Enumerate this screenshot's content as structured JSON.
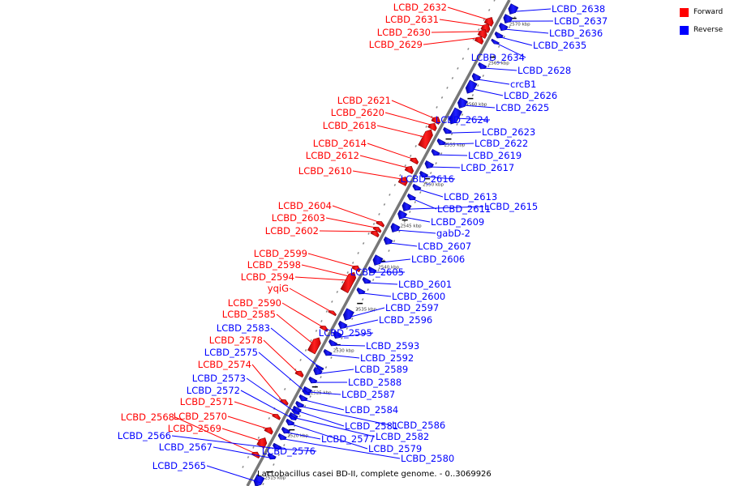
{
  "legend": {
    "forward_label": "Forward",
    "reverse_label": "Reverse",
    "forward_color": "#ff0000",
    "reverse_color": "#0000ff"
  },
  "caption": "Lactobacillus casei BD-II, complete genome. - 0..3069926",
  "scale_ticks": [
    "2515 kbp",
    "2520 kbp",
    "2525 kbp",
    "2530 kbp",
    "2535 kbp",
    "2540 kbp",
    "2545 kbp",
    "2550 kbp",
    "2555 kbp",
    "2560 kbp",
    "2565 kbp",
    "2570 kbp"
  ],
  "genes_forward": [
    {
      "name": "LCBD_2632",
      "lp": 1.0
    },
    {
      "name": "LCBD_2631",
      "lp": 1.0
    },
    {
      "name": "LCBD_2630",
      "lp": 1.0
    },
    {
      "name": "LCBD_2629",
      "lp": 0.5
    },
    {
      "name": "LCBD_2621",
      "lp": 1.0
    },
    {
      "name": "LCBD_2620",
      "lp": 1.0
    },
    {
      "name": "LCBD_2618",
      "lp": 0.5
    },
    {
      "name": "LCBD_2614",
      "lp": 1.0
    },
    {
      "name": "LCBD_2612",
      "lp": 1.0
    },
    {
      "name": "LCBD_2610",
      "lp": 0.5
    },
    {
      "name": "LCBD_2604",
      "lp": 1.0
    },
    {
      "name": "LCBD_2603",
      "lp": 1.0
    },
    {
      "name": "LCBD_2602",
      "lp": 0.5
    },
    {
      "name": "LCBD_2599",
      "lp": 1.0
    },
    {
      "name": "LCBD_2598",
      "lp": 0.5
    },
    {
      "name": "LCBD_2594",
      "lp": 0.5
    },
    {
      "name": "yqiG",
      "lp": 1.0
    },
    {
      "name": "LCBD_2590",
      "lp": 1.0
    },
    {
      "name": "LCBD_2585",
      "lp": 1.0
    },
    {
      "name": "LCBD_2578",
      "lp": 0.5
    },
    {
      "name": "LCBD_2574",
      "lp": 1.0
    },
    {
      "name": "LCBD_2571",
      "lp": 1.0
    },
    {
      "name": "LCBD_2570",
      "lp": 1.0
    },
    {
      "name": "LCBD_2569",
      "lp": 1.0
    },
    {
      "name": "LCBD_2568",
      "lp": 0.5
    }
  ],
  "genes_reverse": [
    {
      "name": "LCBD_2638",
      "lp": 0.0
    },
    {
      "name": "LCBD_2637",
      "lp": 0.0
    },
    {
      "name": "LCBD_2636",
      "lp": 0.0
    },
    {
      "name": "LCBD_2635",
      "lp": 0.0
    },
    {
      "name": "LCBD_2634",
      "lp": 0.5
    },
    {
      "name": "LCBD_2628",
      "lp": 0.0
    },
    {
      "name": "crcB1",
      "lp": 0.0
    },
    {
      "name": "LCBD_2626",
      "lp": 0.0
    },
    {
      "name": "LCBD_2625",
      "lp": 0.0
    },
    {
      "name": "LCBD_2624",
      "lp": 0.5
    },
    {
      "name": "LCBD_2623",
      "lp": 0.0
    },
    {
      "name": "LCBD_2622",
      "lp": 0.0
    },
    {
      "name": "LCBD_2619",
      "lp": 0.0
    },
    {
      "name": "LCBD_2617",
      "lp": 0.0
    },
    {
      "name": "LCBD_2616",
      "lp": 0.5
    },
    {
      "name": "LCBD_2613",
      "lp": 0.0
    },
    {
      "name": "LCBD_2611",
      "lp": 0.0
    },
    {
      "name": "LCBD_2615",
      "lp": 0.0
    },
    {
      "name": "LCBD_2609",
      "lp": 0.0
    },
    {
      "name": "gabD-2",
      "lp": 0.0
    },
    {
      "name": "LCBD_2607",
      "lp": 0.0
    },
    {
      "name": "LCBD_2606",
      "lp": 0.0
    },
    {
      "name": "LCBD_2605",
      "lp": 0.5
    },
    {
      "name": "LCBD_2601",
      "lp": 0.0
    },
    {
      "name": "LCBD_2600",
      "lp": 0.0
    },
    {
      "name": "LCBD_2597",
      "lp": 0.0
    },
    {
      "name": "LCBD_2596",
      "lp": 0.0
    },
    {
      "name": "LCBD_2595",
      "lp": 0.5
    },
    {
      "name": "LCBD_2593",
      "lp": 0.0
    },
    {
      "name": "LCBD_2592",
      "lp": 0.0
    },
    {
      "name": "LCBD_2589",
      "lp": 0.0
    },
    {
      "name": "LCBD_2588",
      "lp": 0.0
    },
    {
      "name": "LCBD_2587",
      "lp": 0.0
    },
    {
      "name": "LCBD_2584",
      "lp": 0.0
    },
    {
      "name": "LCBD_2586",
      "lp": 0.0
    },
    {
      "name": "LCBD_2581",
      "lp": 0.0
    },
    {
      "name": "LCBD_2582",
      "lp": 0.0
    },
    {
      "name": "LCBD_2579",
      "lp": 0.0
    },
    {
      "name": "LCBD_2577",
      "lp": 0.0
    },
    {
      "name": "LCBD_2580",
      "lp": 0.0
    },
    {
      "name": "LCBD_2576",
      "lp": 0.5
    },
    {
      "name": "LCBD_2583",
      "lp": 1.0
    },
    {
      "name": "LCBD_2575",
      "lp": 1.0
    },
    {
      "name": "LCBD_2573",
      "lp": 1.0
    },
    {
      "name": "LCBD_2572",
      "lp": 1.0
    },
    {
      "name": "LCBD_2566",
      "lp": 1.0
    },
    {
      "name": "LCBD_2567",
      "lp": 1.0
    },
    {
      "name": "LCBD_2565",
      "lp": 1.0
    }
  ]
}
